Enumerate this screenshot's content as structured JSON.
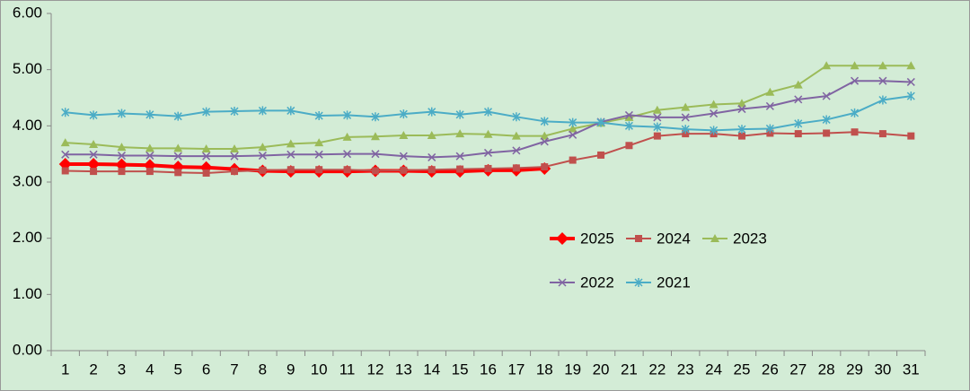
{
  "chart_data": {
    "type": "line",
    "categories": [
      "1",
      "2",
      "3",
      "4",
      "5",
      "6",
      "7",
      "8",
      "9",
      "10",
      "11",
      "12",
      "13",
      "14",
      "15",
      "16",
      "17",
      "18",
      "19",
      "20",
      "21",
      "22",
      "23",
      "24",
      "25",
      "26",
      "27",
      "28",
      "29",
      "30",
      "31"
    ],
    "series": [
      {
        "name": "2025",
        "color": "#ff0000",
        "marker": "diamond",
        "width": 4,
        "values": [
          3.32,
          3.32,
          3.31,
          3.3,
          3.27,
          3.26,
          3.23,
          3.2,
          3.19,
          3.19,
          3.19,
          3.2,
          3.2,
          3.19,
          3.19,
          3.21,
          3.21,
          3.24,
          null,
          null,
          null,
          null,
          null,
          null,
          null,
          null,
          null,
          null,
          null,
          null,
          null
        ]
      },
      {
        "name": "2024",
        "color": "#c0504d",
        "marker": "square",
        "width": 2,
        "values": [
          3.2,
          3.19,
          3.19,
          3.19,
          3.17,
          3.16,
          3.19,
          3.21,
          3.22,
          3.22,
          3.22,
          3.2,
          3.21,
          3.22,
          3.23,
          3.24,
          3.25,
          3.27,
          3.39,
          3.48,
          3.65,
          3.82,
          3.86,
          3.86,
          3.82,
          3.87,
          3.86,
          3.87,
          3.89,
          3.86,
          3.82
        ]
      },
      {
        "name": "2023",
        "color": "#9bbb59",
        "marker": "triangle",
        "width": 2,
        "values": [
          3.7,
          3.67,
          3.62,
          3.6,
          3.6,
          3.59,
          3.59,
          3.62,
          3.68,
          3.7,
          3.8,
          3.81,
          3.83,
          3.83,
          3.86,
          3.85,
          3.82,
          3.82,
          3.95,
          4.05,
          4.15,
          4.28,
          4.33,
          4.38,
          4.4,
          4.6,
          4.73,
          5.07,
          5.07,
          5.07,
          5.07
        ]
      },
      {
        "name": "2022",
        "color": "#8064a2",
        "marker": "x",
        "width": 2,
        "values": [
          3.49,
          3.49,
          3.47,
          3.47,
          3.46,
          3.46,
          3.46,
          3.47,
          3.49,
          3.49,
          3.5,
          3.5,
          3.46,
          3.44,
          3.46,
          3.52,
          3.56,
          3.72,
          3.84,
          4.07,
          4.19,
          4.15,
          4.15,
          4.22,
          4.3,
          4.35,
          4.47,
          4.53,
          4.8,
          4.8,
          4.78
        ]
      },
      {
        "name": "2021",
        "color": "#4bacc6",
        "marker": "star",
        "width": 2,
        "values": [
          4.24,
          4.19,
          4.22,
          4.2,
          4.17,
          4.25,
          4.26,
          4.27,
          4.27,
          4.18,
          4.19,
          4.16,
          4.21,
          4.25,
          4.2,
          4.25,
          4.16,
          4.08,
          4.06,
          4.06,
          4.0,
          3.98,
          3.94,
          3.92,
          3.94,
          3.95,
          4.04,
          4.11,
          4.23,
          4.46,
          4.53
        ]
      }
    ],
    "ylim": [
      0,
      6
    ],
    "yticks": [
      {
        "value": 0,
        "label": "0.00"
      },
      {
        "value": 1,
        "label": "1.00"
      },
      {
        "value": 2,
        "label": "2.00"
      },
      {
        "value": 3,
        "label": "3.00"
      },
      {
        "value": 4,
        "label": "4.00"
      },
      {
        "value": 5,
        "label": "5.00"
      },
      {
        "value": 6,
        "label": "6.00"
      }
    ],
    "grid": false,
    "legend": "right"
  }
}
